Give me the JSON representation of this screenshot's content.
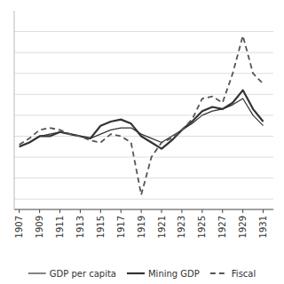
{
  "chart_data": {
    "type": "line",
    "x": [
      1907,
      1908,
      1909,
      1910,
      1911,
      1912,
      1913,
      1914,
      1915,
      1916,
      1917,
      1918,
      1919,
      1920,
      1921,
      1922,
      1923,
      1924,
      1925,
      1926,
      1927,
      1928,
      1929,
      1930,
      1931
    ],
    "series": [
      {
        "name": "GDP per capita",
        "color": "#333333",
        "line_style": "solid",
        "values": [
          95,
          97,
          100,
          101,
          102,
          101,
          100,
          99,
          101,
          103,
          104,
          104,
          101,
          99,
          97,
          100,
          103,
          106,
          110,
          112,
          113,
          115,
          118,
          110,
          105
        ]
      },
      {
        "name": "Mining GDP",
        "color": "#333333",
        "line_style": "solid",
        "values": [
          95,
          97,
          100,
          100,
          102,
          101,
          100,
          99,
          105,
          107,
          108,
          106,
          100,
          97,
          94,
          98,
          103,
          107,
          112,
          114,
          113,
          116,
          122,
          113,
          107
        ]
      },
      {
        "name": "Fiscal",
        "color": "#555555",
        "line_style": "dashed",
        "values": [
          96,
          99,
          103,
          104,
          103,
          101,
          100,
          98,
          97,
          101,
          100,
          97,
          72,
          90,
          97,
          99,
          103,
          108,
          118,
          119,
          116,
          130,
          148,
          130,
          125
        ]
      }
    ],
    "xlim": [
      1906.5,
      1932
    ],
    "xticks": [
      1907,
      1909,
      1911,
      1913,
      1915,
      1917,
      1919,
      1921,
      1923,
      1925,
      1927,
      1929,
      1931
    ],
    "ylim": [
      65,
      160
    ],
    "yticks": [
      70,
      80,
      90,
      100,
      110,
      120,
      130,
      140,
      150
    ],
    "grid": true,
    "tick_labels": "x",
    "legend": "bottom"
  }
}
